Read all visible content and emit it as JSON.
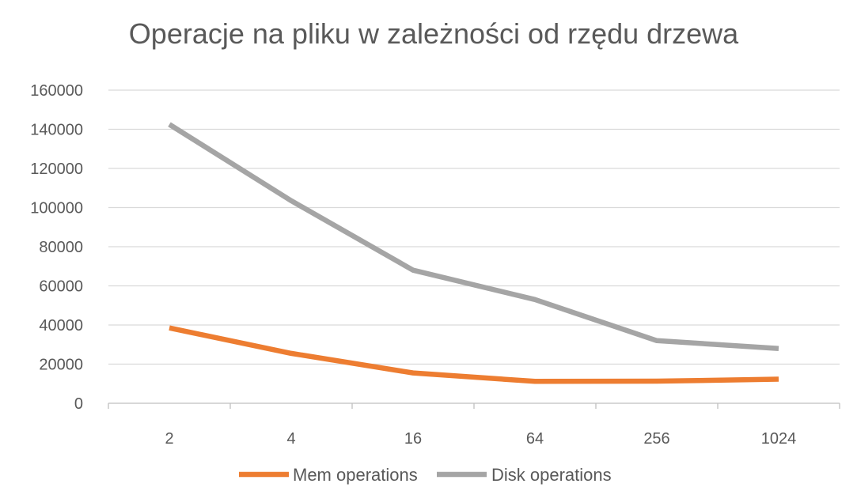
{
  "chart_data": {
    "type": "line",
    "title": "Operacje na pliku w zależności od rzędu drzewa",
    "xlabel": "",
    "ylabel": "",
    "categories": [
      "2",
      "4",
      "16",
      "64",
      "256",
      "1024"
    ],
    "series": [
      {
        "name": "Mem operations",
        "color": "#ED7D31",
        "values": [
          38500,
          25500,
          15500,
          11200,
          11300,
          12300
        ]
      },
      {
        "name": "Disk operations",
        "color": "#A5A5A5",
        "values": [
          142500,
          103500,
          68000,
          53000,
          32000,
          28000
        ]
      }
    ],
    "ylim": [
      0,
      160000
    ],
    "yticks": [
      "0",
      "20000",
      "40000",
      "60000",
      "80000",
      "100000",
      "120000",
      "140000",
      "160000"
    ],
    "grid": true,
    "legend": "bottom",
    "gridColor": "#D9D9D9",
    "axisColor": "#BFBFBF"
  }
}
